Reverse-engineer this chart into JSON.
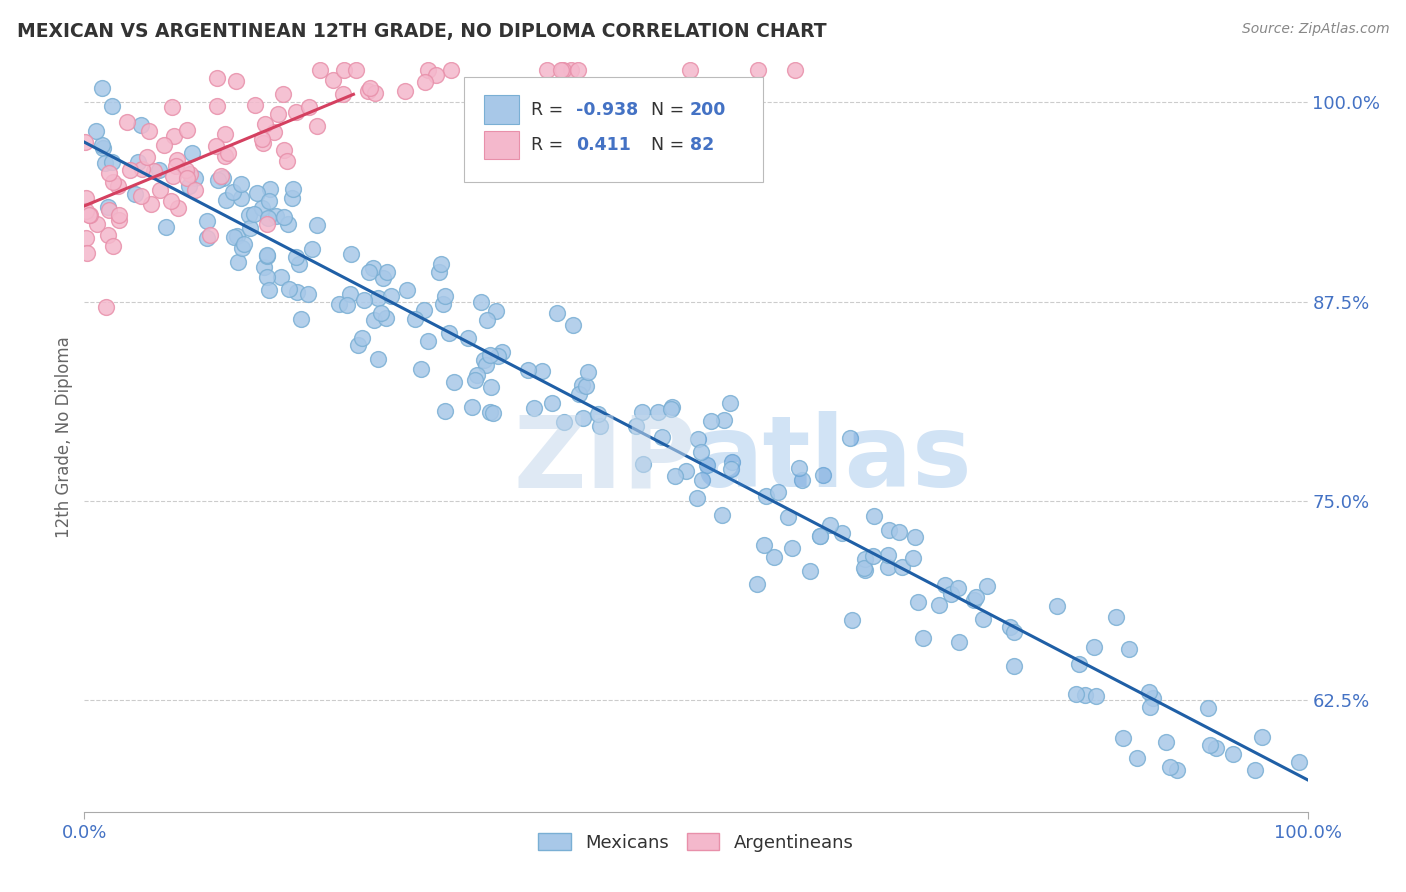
{
  "title": "MEXICAN VS ARGENTINEAN 12TH GRADE, NO DIPLOMA CORRELATION CHART",
  "source": "Source: ZipAtlas.com",
  "ylabel": "12th Grade, No Diploma",
  "legend_blue_R": "-0.938",
  "legend_blue_N": "200",
  "legend_pink_R": "0.411",
  "legend_pink_N": "82",
  "legend_label_blue": "Mexicans",
  "legend_label_pink": "Argentineans",
  "blue_color": "#a8c8e8",
  "blue_edge_color": "#7aafd4",
  "pink_color": "#f4b8cc",
  "pink_edge_color": "#e890aa",
  "blue_line_color": "#1f5fa6",
  "pink_line_color": "#d44060",
  "watermark_color": "#c5d8ec",
  "background_color": "#ffffff",
  "grid_color": "#cccccc",
  "title_color": "#333333",
  "axis_label_color": "#666666",
  "tick_color_right": "#4472c4",
  "tick_color_bottom": "#4472c4",
  "legend_R_N_color": "#4472c4",
  "legend_text_color": "#333333",
  "y_ticks": [
    0.625,
    0.75,
    0.875,
    1.0
  ],
  "y_tick_labels": [
    "62.5%",
    "75.0%",
    "87.5%",
    "100.0%"
  ],
  "x_min": 0.0,
  "x_max": 1.0,
  "y_min": 0.555,
  "y_max": 1.025,
  "blue_line_x0": 0.0,
  "blue_line_y0": 0.975,
  "blue_line_x1": 1.0,
  "blue_line_y1": 0.575,
  "pink_line_x0": 0.0,
  "pink_line_y0": 0.935,
  "pink_line_x1": 0.22,
  "pink_line_y1": 1.005
}
